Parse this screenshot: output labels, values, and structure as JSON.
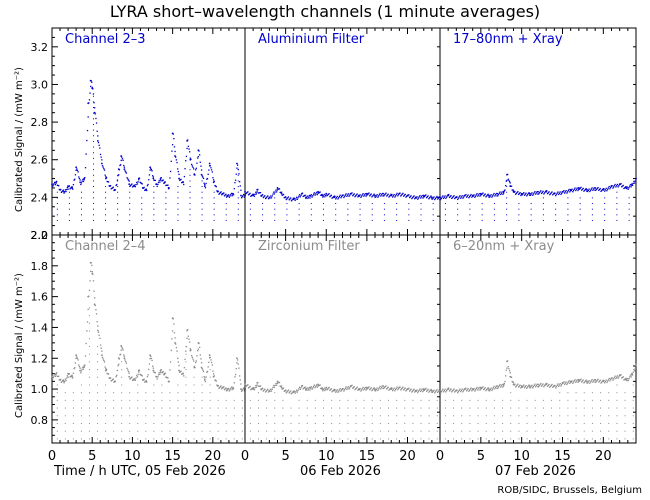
{
  "title": "LYRA short–wavelength channels (1 minute averages)",
  "credit": "ROB/SIDC, Brussels, Belgium",
  "x_axis_labels": [
    "Time / h UTC, 05 Feb 2026",
    "06 Feb 2026",
    "07 Feb 2026"
  ],
  "colors": {
    "top_row": "#0000cc",
    "bottom_row": "#8c8c8c",
    "axis": "#000000"
  },
  "chart_data": [
    {
      "type": "scatter",
      "title": "Channel 2–3",
      "ylabel": "Calibrated Signal / (mW m⁻²)",
      "xlabel": "Time / h UTC, 05 Feb 2026",
      "xlim": [
        0,
        24
      ],
      "ylim": [
        2.2,
        3.3
      ],
      "yticks": [
        2.2,
        2.4,
        2.6,
        2.8,
        3.0,
        3.2
      ],
      "xticks": [
        0,
        5,
        10,
        15,
        20
      ],
      "points": [
        [
          0,
          2.47
        ],
        [
          0.5,
          2.48
        ],
        [
          1,
          2.44
        ],
        [
          1.5,
          2.43
        ],
        [
          2,
          2.46
        ],
        [
          2.5,
          2.45
        ],
        [
          3,
          2.56
        ],
        [
          3.5,
          2.48
        ],
        [
          4,
          2.5
        ],
        [
          4.5,
          2.9
        ],
        [
          4.8,
          3.02
        ],
        [
          5,
          2.98
        ],
        [
          5.3,
          2.85
        ],
        [
          5.7,
          2.7
        ],
        [
          6.2,
          2.58
        ],
        [
          6.7,
          2.5
        ],
        [
          7.2,
          2.46
        ],
        [
          7.8,
          2.44
        ],
        [
          8.3,
          2.55
        ],
        [
          8.6,
          2.62
        ],
        [
          9,
          2.55
        ],
        [
          9.6,
          2.47
        ],
        [
          10.2,
          2.46
        ],
        [
          10.8,
          2.5
        ],
        [
          11.3,
          2.45
        ],
        [
          11.7,
          2.44
        ],
        [
          12.2,
          2.56
        ],
        [
          12.6,
          2.5
        ],
        [
          13,
          2.47
        ],
        [
          13.5,
          2.5
        ],
        [
          14,
          2.48
        ],
        [
          14.5,
          2.45
        ],
        [
          15,
          2.74
        ],
        [
          15.3,
          2.62
        ],
        [
          15.8,
          2.5
        ],
        [
          16.3,
          2.48
        ],
        [
          16.8,
          2.7
        ],
        [
          17.2,
          2.6
        ],
        [
          17.7,
          2.52
        ],
        [
          18.2,
          2.65
        ],
        [
          18.6,
          2.52
        ],
        [
          19,
          2.46
        ],
        [
          19.6,
          2.58
        ],
        [
          20.1,
          2.48
        ],
        [
          20.6,
          2.43
        ],
        [
          21.2,
          2.42
        ],
        [
          21.8,
          2.41
        ],
        [
          22.5,
          2.42
        ],
        [
          23,
          2.58
        ],
        [
          23.5,
          2.41
        ],
        [
          24,
          2.41
        ]
      ],
      "dropouts": {
        "interval_h": 1.5,
        "low": 2.28,
        "spacing": 0.03
      }
    },
    {
      "type": "scatter",
      "title": "Aluminium Filter",
      "xlabel": "06 Feb 2026",
      "xlim": [
        0,
        24
      ],
      "ylim": [
        2.2,
        3.3
      ],
      "xticks": [
        0,
        5,
        10,
        15,
        20
      ],
      "points": [
        [
          0,
          2.43
        ],
        [
          1,
          2.41
        ],
        [
          1.5,
          2.44
        ],
        [
          2,
          2.41
        ],
        [
          3,
          2.4
        ],
        [
          4,
          2.45
        ],
        [
          4.5,
          2.42
        ],
        [
          5,
          2.4
        ],
        [
          6,
          2.39
        ],
        [
          7,
          2.42
        ],
        [
          7.5,
          2.4
        ],
        [
          8,
          2.41
        ],
        [
          9,
          2.43
        ],
        [
          9.5,
          2.41
        ],
        [
          10,
          2.42
        ],
        [
          11,
          2.4
        ],
        [
          12,
          2.41
        ],
        [
          13,
          2.42
        ],
        [
          14,
          2.41
        ],
        [
          15,
          2.42
        ],
        [
          16,
          2.41
        ],
        [
          17,
          2.42
        ],
        [
          18,
          2.41
        ],
        [
          19,
          2.42
        ],
        [
          20,
          2.41
        ],
        [
          21,
          2.4
        ],
        [
          22,
          2.41
        ],
        [
          23,
          2.4
        ],
        [
          24,
          2.4
        ]
      ],
      "dropouts": {
        "interval_h": 1.5,
        "low": 2.28,
        "spacing": 0.03
      }
    },
    {
      "type": "scatter",
      "title": "17–80nm + Xray",
      "xlabel": "07 Feb 2026",
      "xlim": [
        0,
        24
      ],
      "ylim": [
        2.2,
        3.3
      ],
      "xticks": [
        0,
        5,
        10,
        15,
        20
      ],
      "points": [
        [
          0,
          2.4
        ],
        [
          1,
          2.41
        ],
        [
          2,
          2.4
        ],
        [
          3,
          2.41
        ],
        [
          4,
          2.41
        ],
        [
          5,
          2.42
        ],
        [
          6,
          2.41
        ],
        [
          7,
          2.42
        ],
        [
          7.8,
          2.43
        ],
        [
          8.2,
          2.52
        ],
        [
          8.6,
          2.46
        ],
        [
          9,
          2.43
        ],
        [
          10,
          2.42
        ],
        [
          11,
          2.42
        ],
        [
          12,
          2.43
        ],
        [
          13,
          2.43
        ],
        [
          14,
          2.42
        ],
        [
          15,
          2.43
        ],
        [
          16,
          2.44
        ],
        [
          17,
          2.45
        ],
        [
          18,
          2.44
        ],
        [
          19,
          2.45
        ],
        [
          20,
          2.44
        ],
        [
          21,
          2.46
        ],
        [
          22,
          2.47
        ],
        [
          22.8,
          2.45
        ],
        [
          23.5,
          2.47
        ],
        [
          24,
          2.5
        ]
      ],
      "dropouts": {
        "interval_h": 1.5,
        "low": 2.28,
        "spacing": 0.03
      }
    },
    {
      "type": "scatter",
      "title": "Channel 2–4",
      "ylabel": "Calibrated Signal / (mW m⁻²)",
      "xlabel": "Time / h UTC, 05 Feb 2026",
      "xlim": [
        0,
        24
      ],
      "ylim": [
        0.65,
        2.0
      ],
      "yticks": [
        0.8,
        1.0,
        1.2,
        1.4,
        1.6,
        1.8,
        2.0
      ],
      "xticks": [
        0,
        5,
        10,
        15,
        20
      ],
      "points": [
        [
          0,
          1.08
        ],
        [
          0.5,
          1.1
        ],
        [
          1,
          1.06
        ],
        [
          1.5,
          1.05
        ],
        [
          2,
          1.1
        ],
        [
          2.5,
          1.08
        ],
        [
          3,
          1.22
        ],
        [
          3.5,
          1.12
        ],
        [
          4,
          1.15
        ],
        [
          4.5,
          1.6
        ],
        [
          4.8,
          1.82
        ],
        [
          5,
          1.75
        ],
        [
          5.3,
          1.55
        ],
        [
          5.7,
          1.38
        ],
        [
          6.2,
          1.22
        ],
        [
          6.7,
          1.12
        ],
        [
          7.2,
          1.07
        ],
        [
          7.8,
          1.05
        ],
        [
          8.3,
          1.2
        ],
        [
          8.6,
          1.28
        ],
        [
          9,
          1.2
        ],
        [
          9.6,
          1.08
        ],
        [
          10.2,
          1.06
        ],
        [
          10.8,
          1.12
        ],
        [
          11.3,
          1.06
        ],
        [
          11.7,
          1.05
        ],
        [
          12.2,
          1.22
        ],
        [
          12.6,
          1.12
        ],
        [
          13,
          1.08
        ],
        [
          13.5,
          1.12
        ],
        [
          14,
          1.1
        ],
        [
          14.5,
          1.05
        ],
        [
          15,
          1.46
        ],
        [
          15.3,
          1.3
        ],
        [
          15.8,
          1.12
        ],
        [
          16.3,
          1.1
        ],
        [
          16.8,
          1.38
        ],
        [
          17.2,
          1.25
        ],
        [
          17.7,
          1.14
        ],
        [
          18.2,
          1.3
        ],
        [
          18.6,
          1.14
        ],
        [
          19,
          1.06
        ],
        [
          19.6,
          1.22
        ],
        [
          20.1,
          1.08
        ],
        [
          20.6,
          1.02
        ],
        [
          21.2,
          1.01
        ],
        [
          21.8,
          1.0
        ],
        [
          22.5,
          1.01
        ],
        [
          23,
          1.2
        ],
        [
          23.5,
          1.0
        ],
        [
          24,
          1.0
        ]
      ],
      "dropouts": {
        "interval_h": 1.0,
        "low": 0.68,
        "spacing": 0.05
      }
    },
    {
      "type": "scatter",
      "title": "Zirconium Filter",
      "xlabel": "06 Feb 2026",
      "xlim": [
        0,
        24
      ],
      "ylim": [
        0.65,
        2.0
      ],
      "xticks": [
        0,
        5,
        10,
        15,
        20
      ],
      "points": [
        [
          0,
          1.03
        ],
        [
          1,
          1.0
        ],
        [
          1.5,
          1.04
        ],
        [
          2,
          1.0
        ],
        [
          3,
          0.99
        ],
        [
          4,
          1.05
        ],
        [
          4.5,
          1.01
        ],
        [
          5,
          0.99
        ],
        [
          6,
          0.98
        ],
        [
          7,
          1.02
        ],
        [
          7.5,
          1.0
        ],
        [
          8,
          1.01
        ],
        [
          9,
          1.03
        ],
        [
          9.5,
          1.0
        ],
        [
          10,
          1.01
        ],
        [
          11,
          0.99
        ],
        [
          12,
          1.0
        ],
        [
          13,
          1.02
        ],
        [
          14,
          1.0
        ],
        [
          15,
          1.01
        ],
        [
          16,
          1.0
        ],
        [
          17,
          1.02
        ],
        [
          18,
          1.0
        ],
        [
          19,
          1.01
        ],
        [
          20,
          1.0
        ],
        [
          21,
          0.99
        ],
        [
          22,
          1.0
        ],
        [
          23,
          0.99
        ],
        [
          24,
          0.99
        ]
      ],
      "dropouts": {
        "interval_h": 1.0,
        "low": 0.68,
        "spacing": 0.05
      }
    },
    {
      "type": "scatter",
      "title": "6–20nm + Xray",
      "xlabel": "07 Feb 2026",
      "xlim": [
        0,
        24
      ],
      "ylim": [
        0.65,
        2.0
      ],
      "xticks": [
        0,
        5,
        10,
        15,
        20
      ],
      "points": [
        [
          0,
          0.99
        ],
        [
          1,
          1.0
        ],
        [
          2,
          0.99
        ],
        [
          3,
          1.0
        ],
        [
          4,
          1.0
        ],
        [
          5,
          1.01
        ],
        [
          6,
          1.0
        ],
        [
          7,
          1.02
        ],
        [
          7.8,
          1.03
        ],
        [
          8.2,
          1.18
        ],
        [
          8.6,
          1.08
        ],
        [
          9,
          1.03
        ],
        [
          10,
          1.02
        ],
        [
          11,
          1.02
        ],
        [
          12,
          1.03
        ],
        [
          13,
          1.03
        ],
        [
          14,
          1.02
        ],
        [
          15,
          1.04
        ],
        [
          16,
          1.05
        ],
        [
          17,
          1.06
        ],
        [
          18,
          1.05
        ],
        [
          19,
          1.06
        ],
        [
          20,
          1.05
        ],
        [
          21,
          1.07
        ],
        [
          22,
          1.09
        ],
        [
          22.8,
          1.06
        ],
        [
          23.5,
          1.1
        ],
        [
          24,
          1.16
        ]
      ],
      "dropouts": {
        "interval_h": 1.0,
        "low": 0.68,
        "spacing": 0.05
      }
    }
  ]
}
